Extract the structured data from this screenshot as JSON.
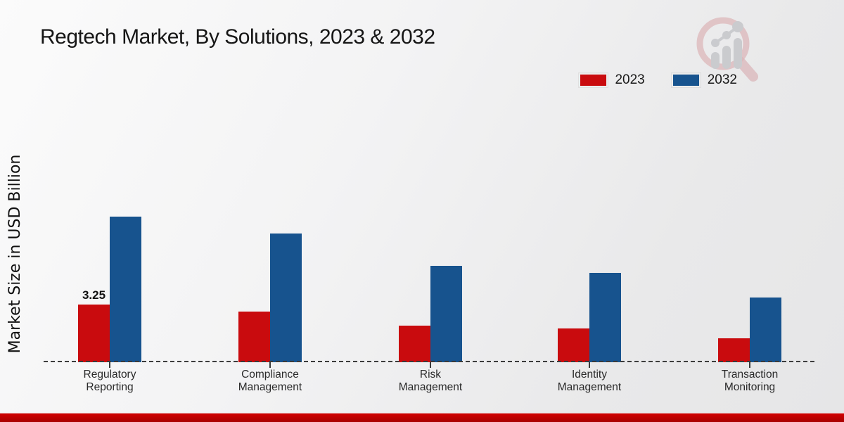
{
  "title": "Regtech Market, By Solutions, 2023 & 2032",
  "y_axis_label": "Market Size in USD Billion",
  "legend": {
    "items": [
      {
        "label": "2023",
        "color": "#c90b0e"
      },
      {
        "label": "2032",
        "color": "#17538e"
      }
    ]
  },
  "logo": {
    "name": "magnifier-bar-chart-logo"
  },
  "colors": {
    "series_2023": "#c90b0e",
    "series_2032": "#17538e",
    "footer_band": "#c10000",
    "baseline": "#3c3c3c"
  },
  "chart_data": {
    "type": "bar",
    "title": "Regtech Market, By Solutions, 2023 & 2032",
    "ylabel": "Market Size in USD Billion",
    "xlabel": "",
    "categories": [
      "Regulatory Reporting",
      "Compliance Management",
      "Risk Management",
      "Identity Management",
      "Transaction Monitoring"
    ],
    "series": [
      {
        "name": "2023",
        "color": "#c90b0e",
        "values": [
          3.25,
          2.85,
          2.05,
          1.9,
          1.35
        ]
      },
      {
        "name": "2032",
        "color": "#17538e",
        "values": [
          8.2,
          7.25,
          5.45,
          5.05,
          3.65
        ]
      }
    ],
    "data_labels": [
      {
        "series": "2023",
        "category_index": 0,
        "text": "3.25"
      }
    ],
    "ylim": [
      0,
      9
    ],
    "y_axis_ticks_visible": false,
    "grid": false,
    "baseline_style": "dashed",
    "legend_position": "top-right"
  }
}
